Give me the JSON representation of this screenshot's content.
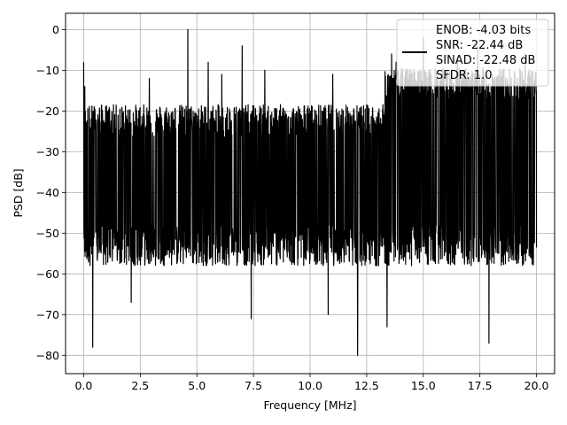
{
  "chart_data": {
    "type": "line",
    "xlabel": "Frequency [MHz]",
    "ylabel": "PSD [dB]",
    "xlim": [
      -0.8,
      20.8
    ],
    "ylim": [
      -84.5,
      4.0
    ],
    "xticks": [
      0.0,
      2.5,
      5.0,
      7.5,
      10.0,
      12.5,
      15.0,
      17.5,
      20.0
    ],
    "xtick_labels": [
      "0.0",
      "2.5",
      "5.0",
      "7.5",
      "10.0",
      "12.5",
      "15.0",
      "17.5",
      "20.0"
    ],
    "yticks": [
      0,
      -10,
      -20,
      -30,
      -40,
      -50,
      -60,
      -70,
      -80
    ],
    "ytick_labels": [
      "0",
      "−10",
      "−20",
      "−30",
      "−40",
      "−50",
      "−60",
      "−70",
      "−80"
    ],
    "grid": true,
    "legend_position": "top-right",
    "series": [
      {
        "name": "ENOB: -4.03 bits\nSNR: -22.44 dB\nSINAD: -22.48 dB\nSFDR: 1.0",
        "legend_lines": [
          "ENOB: -4.03 bits",
          "SNR: -22.44 dB",
          "SINAD: -22.48 dB",
          "SFDR: 1.0"
        ],
        "color": "#000000",
        "x_range": [
          0.0,
          20.0
        ],
        "noise_floor_mean": -36,
        "noise_band_upper_low_freq": -24,
        "noise_band_upper_high_freq": -15,
        "noise_band_lower": -52,
        "spikes": [
          {
            "x": 0.0,
            "y": -8
          },
          {
            "x": 0.05,
            "y": -14
          },
          {
            "x": 4.6,
            "y": 0
          },
          {
            "x": 2.9,
            "y": -12
          },
          {
            "x": 5.5,
            "y": -8
          },
          {
            "x": 6.1,
            "y": -11
          },
          {
            "x": 7.0,
            "y": -4
          },
          {
            "x": 8.0,
            "y": -10
          },
          {
            "x": 11.0,
            "y": -11
          },
          {
            "x": 13.6,
            "y": -6
          },
          {
            "x": 13.8,
            "y": -8
          },
          {
            "x": 15.0,
            "y": -2
          },
          {
            "x": 16.5,
            "y": -7
          },
          {
            "x": 17.4,
            "y": -4
          },
          {
            "x": 19.5,
            "y": -6
          },
          {
            "x": 0.4,
            "y": -78
          },
          {
            "x": 7.4,
            "y": -71
          },
          {
            "x": 12.1,
            "y": -80
          },
          {
            "x": 13.4,
            "y": -73
          },
          {
            "x": 17.9,
            "y": -77
          },
          {
            "x": 10.8,
            "y": -70
          },
          {
            "x": 2.1,
            "y": -67
          }
        ]
      }
    ]
  }
}
